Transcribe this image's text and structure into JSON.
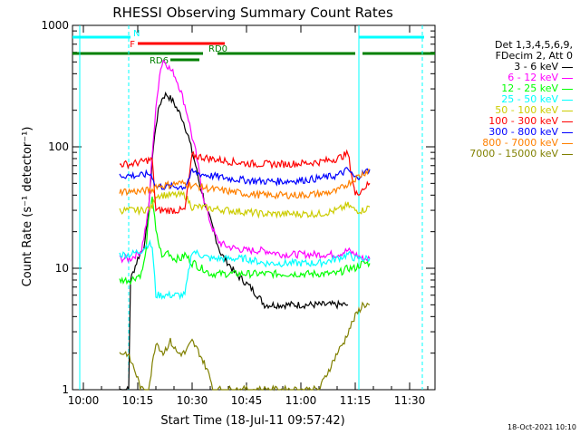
{
  "chart_data": {
    "type": "line",
    "title": "RHESSI Observing Summary Count Rates",
    "xlabel": "Start Time (18-Jul-11 09:57:42)",
    "ylabel": "Count Rate (s⁻¹ detector⁻¹)",
    "yscale": "log",
    "ylim": [
      1,
      1000
    ],
    "xlim_minutes": [
      -3,
      97
    ],
    "x_ticks": [
      {
        "m": 0,
        "label": "10:00"
      },
      {
        "m": 15,
        "label": "10:15"
      },
      {
        "m": 30,
        "label": "10:30"
      },
      {
        "m": 45,
        "label": "10:45"
      },
      {
        "m": 60,
        "label": "11:00"
      },
      {
        "m": 75,
        "label": "11:15"
      },
      {
        "m": 90,
        "label": "11:30"
      }
    ],
    "y_ticks": [
      {
        "v": 1,
        "label": "1"
      },
      {
        "v": 10,
        "label": "10"
      },
      {
        "v": 100,
        "label": "100"
      },
      {
        "v": 1000,
        "label": "1000"
      }
    ],
    "grid": false,
    "legend_position": "right",
    "legend_header": [
      "Det 1,3,4,5,6,9,",
      "FDecim 2, Att 0"
    ],
    "series": [
      {
        "name": "3 - 6 keV",
        "color": "#000000",
        "points": [
          [
            10,
            1
          ],
          [
            12.5,
            1
          ],
          [
            13,
            8
          ],
          [
            15,
            12
          ],
          [
            17,
            16
          ],
          [
            18,
            30
          ],
          [
            19,
            80
          ],
          [
            20,
            150
          ],
          [
            21,
            220
          ],
          [
            22,
            260
          ],
          [
            23,
            270
          ],
          [
            24,
            250
          ],
          [
            25,
            230
          ],
          [
            26,
            200
          ],
          [
            27,
            180
          ],
          [
            28,
            150
          ],
          [
            29,
            120
          ],
          [
            30,
            90
          ],
          [
            31,
            70
          ],
          [
            32,
            50
          ],
          [
            33,
            40
          ],
          [
            34,
            30
          ],
          [
            35,
            25
          ],
          [
            36,
            20
          ],
          [
            37,
            16
          ],
          [
            38,
            13
          ],
          [
            40,
            11
          ],
          [
            42,
            9
          ],
          [
            44,
            8
          ],
          [
            46,
            7
          ],
          [
            48,
            6
          ],
          [
            50,
            5
          ],
          [
            55,
            5
          ],
          [
            60,
            5
          ],
          [
            65,
            5
          ],
          [
            70,
            5
          ],
          [
            73,
            5
          ]
        ]
      },
      {
        "name": "6 - 12 keV",
        "color": "#ff00ff",
        "points": [
          [
            10,
            12
          ],
          [
            13,
            12
          ],
          [
            16,
            14
          ],
          [
            18,
            30
          ],
          [
            19,
            90
          ],
          [
            20,
            200
          ],
          [
            21,
            400
          ],
          [
            22,
            520
          ],
          [
            23,
            480
          ],
          [
            24,
            430
          ],
          [
            25,
            400
          ],
          [
            26,
            340
          ],
          [
            27,
            280
          ],
          [
            28,
            220
          ],
          [
            29,
            170
          ],
          [
            30,
            120
          ],
          [
            31,
            90
          ],
          [
            32,
            60
          ],
          [
            33,
            40
          ],
          [
            34,
            30
          ],
          [
            35,
            24
          ],
          [
            36,
            20
          ],
          [
            37,
            17
          ],
          [
            38,
            16
          ],
          [
            40,
            15
          ],
          [
            45,
            14
          ],
          [
            50,
            14
          ],
          [
            55,
            13
          ],
          [
            60,
            13
          ],
          [
            65,
            13
          ],
          [
            70,
            13
          ],
          [
            73,
            14
          ],
          [
            75,
            13
          ],
          [
            77,
            12
          ],
          [
            79,
            12
          ]
        ]
      },
      {
        "name": "12 - 25 keV",
        "color": "#00ff00",
        "points": [
          [
            10,
            8
          ],
          [
            13,
            8
          ],
          [
            16,
            9
          ],
          [
            17,
            12
          ],
          [
            18,
            25
          ],
          [
            19,
            40
          ],
          [
            20,
            20
          ],
          [
            21,
            15
          ],
          [
            22,
            12
          ],
          [
            23,
            14
          ],
          [
            24,
            13
          ],
          [
            25,
            12
          ],
          [
            26,
            12
          ],
          [
            27,
            12
          ],
          [
            28,
            13
          ],
          [
            29,
            12
          ],
          [
            30,
            11
          ],
          [
            31,
            11
          ],
          [
            32,
            10
          ],
          [
            33,
            10
          ],
          [
            35,
            9
          ],
          [
            40,
            9
          ],
          [
            45,
            9
          ],
          [
            50,
            9
          ],
          [
            55,
            9
          ],
          [
            60,
            9
          ],
          [
            65,
            9
          ],
          [
            70,
            9
          ],
          [
            73,
            10
          ],
          [
            75,
            10
          ],
          [
            77,
            11
          ],
          [
            79,
            11
          ]
        ]
      },
      {
        "name": "25 - 50 keV",
        "color": "#00ffff",
        "points": [
          [
            10,
            13
          ],
          [
            13,
            13
          ],
          [
            16,
            14
          ],
          [
            18,
            16
          ],
          [
            19,
            15
          ],
          [
            20,
            6
          ],
          [
            22,
            6
          ],
          [
            24,
            6
          ],
          [
            26,
            6
          ],
          [
            28,
            6
          ],
          [
            30,
            14
          ],
          [
            32,
            13
          ],
          [
            35,
            12
          ],
          [
            40,
            12
          ],
          [
            45,
            12
          ],
          [
            50,
            11
          ],
          [
            55,
            11
          ],
          [
            60,
            11
          ],
          [
            65,
            11
          ],
          [
            70,
            12
          ],
          [
            73,
            13
          ],
          [
            75,
            12
          ],
          [
            77,
            12
          ],
          [
            79,
            12
          ]
        ]
      },
      {
        "name": "50 - 100 keV",
        "color": "#cccc00",
        "points": [
          [
            10,
            30
          ],
          [
            13,
            30
          ],
          [
            16,
            30
          ],
          [
            18,
            31
          ],
          [
            19,
            32
          ],
          [
            20,
            40
          ],
          [
            22,
            40
          ],
          [
            24,
            40
          ],
          [
            26,
            40
          ],
          [
            28,
            40
          ],
          [
            30,
            32
          ],
          [
            32,
            32
          ],
          [
            35,
            31
          ],
          [
            40,
            30
          ],
          [
            45,
            29
          ],
          [
            50,
            28
          ],
          [
            55,
            28
          ],
          [
            60,
            28
          ],
          [
            65,
            28
          ],
          [
            70,
            30
          ],
          [
            73,
            33
          ],
          [
            75,
            30
          ],
          [
            77,
            30
          ],
          [
            79,
            32
          ]
        ]
      },
      {
        "name": "100 - 300 keV",
        "color": "#ff0000",
        "points": [
          [
            10,
            72
          ],
          [
            13,
            72
          ],
          [
            16,
            75
          ],
          [
            18,
            78
          ],
          [
            19,
            78
          ],
          [
            20,
            30
          ],
          [
            22,
            30
          ],
          [
            24,
            30
          ],
          [
            26,
            30
          ],
          [
            28,
            30
          ],
          [
            30,
            85
          ],
          [
            32,
            83
          ],
          [
            35,
            80
          ],
          [
            40,
            76
          ],
          [
            45,
            73
          ],
          [
            50,
            72
          ],
          [
            55,
            72
          ],
          [
            60,
            73
          ],
          [
            65,
            75
          ],
          [
            70,
            80
          ],
          [
            73,
            88
          ],
          [
            75,
            40
          ],
          [
            77,
            45
          ],
          [
            79,
            50
          ]
        ]
      },
      {
        "name": "300 - 800 keV",
        "color": "#0000ff",
        "points": [
          [
            10,
            58
          ],
          [
            13,
            58
          ],
          [
            16,
            58
          ],
          [
            18,
            60
          ],
          [
            19,
            58
          ],
          [
            20,
            47
          ],
          [
            22,
            47
          ],
          [
            24,
            47
          ],
          [
            26,
            47
          ],
          [
            28,
            47
          ],
          [
            30,
            62
          ],
          [
            32,
            60
          ],
          [
            35,
            58
          ],
          [
            40,
            55
          ],
          [
            45,
            53
          ],
          [
            50,
            52
          ],
          [
            55,
            52
          ],
          [
            60,
            53
          ],
          [
            65,
            55
          ],
          [
            70,
            58
          ],
          [
            73,
            65
          ],
          [
            75,
            55
          ],
          [
            77,
            60
          ],
          [
            79,
            65
          ]
        ]
      },
      {
        "name": "800 - 7000 keV",
        "color": "#ff8000",
        "points": [
          [
            10,
            43
          ],
          [
            13,
            43
          ],
          [
            16,
            43
          ],
          [
            18,
            44
          ],
          [
            19,
            44
          ],
          [
            20,
            48
          ],
          [
            22,
            48
          ],
          [
            24,
            49
          ],
          [
            26,
            50
          ],
          [
            28,
            50
          ],
          [
            30,
            48
          ],
          [
            32,
            47
          ],
          [
            35,
            45
          ],
          [
            40,
            43
          ],
          [
            45,
            41
          ],
          [
            50,
            40
          ],
          [
            55,
            40
          ],
          [
            60,
            40
          ],
          [
            65,
            41
          ],
          [
            70,
            43
          ],
          [
            73,
            50
          ],
          [
            75,
            55
          ],
          [
            77,
            60
          ],
          [
            79,
            65
          ]
        ]
      },
      {
        "name": "7000 - 15000 keV",
        "color": "#808000",
        "points": [
          [
            10,
            2
          ],
          [
            12,
            2
          ],
          [
            14,
            1.5
          ],
          [
            16,
            1
          ],
          [
            18,
            1
          ],
          [
            20,
            2.5
          ],
          [
            22,
            2
          ],
          [
            24,
            2.5
          ],
          [
            26,
            2
          ],
          [
            28,
            2
          ],
          [
            30,
            2.5
          ],
          [
            32,
            2
          ],
          [
            34,
            1.5
          ],
          [
            36,
            1
          ],
          [
            40,
            1
          ],
          [
            50,
            1
          ],
          [
            60,
            1
          ],
          [
            65,
            1
          ],
          [
            70,
            2
          ],
          [
            72,
            2.5
          ],
          [
            73,
            3
          ],
          [
            75,
            4
          ],
          [
            77,
            5
          ],
          [
            79,
            5
          ]
        ]
      }
    ],
    "bars": [
      {
        "label": "N",
        "color": "#00ffff",
        "level": "top",
        "segments": [
          [
            -3,
            13
          ],
          [
            76,
            94
          ]
        ]
      },
      {
        "label": "F",
        "color": "#ff0000",
        "level": "upper",
        "segments": [
          [
            15,
            39
          ]
        ]
      },
      {
        "label": "RD0",
        "color": "#008000",
        "level": "middle",
        "segments": [
          [
            -3,
            33
          ],
          [
            37,
            75
          ],
          [
            77,
            97
          ]
        ]
      },
      {
        "label": "RD6",
        "color": "#008000",
        "level": "lower",
        "segments": [
          [
            24,
            32
          ]
        ]
      }
    ],
    "vlines": [
      {
        "m": -1,
        "color": "#00ffff",
        "dashed": false
      },
      {
        "m": 12.5,
        "color": "#00ffff",
        "dashed": true
      },
      {
        "m": 76,
        "color": "#00ffff",
        "dashed": false
      },
      {
        "m": 93.5,
        "color": "#00ffff",
        "dashed": true
      }
    ]
  },
  "timestamp": "18-Oct-2021 10:10"
}
